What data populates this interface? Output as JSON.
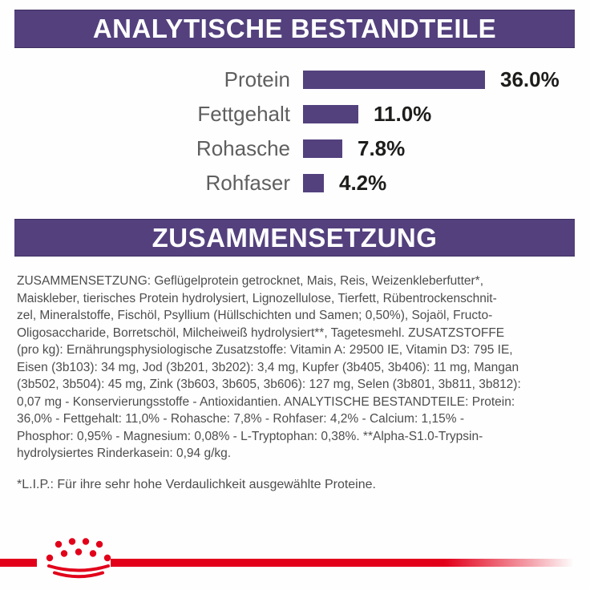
{
  "banners": {
    "analytical_title": "ANALYTISCHE BESTANDTEILE",
    "composition_title": "ZUSAMMENSETZUNG",
    "background_color": "#53407d",
    "text_color": "#ffffff"
  },
  "chart_data": {
    "type": "bar",
    "orientation": "horizontal",
    "title": "ANALYTISCHE BESTANDTEILE",
    "categories": [
      "Protein",
      "Fettgehalt",
      "Rohasche",
      "Rohfaser"
    ],
    "values": [
      36.0,
      11.0,
      7.8,
      4.2
    ],
    "value_labels": [
      "36.0%",
      "11.0%",
      "7.8%",
      "4.2%"
    ],
    "unit": "%",
    "xlim": [
      0,
      40
    ],
    "grid": false,
    "legend": false,
    "bar_color": "#53417e",
    "label_color": "#5f5f5f",
    "value_color": "#1d1d1b"
  },
  "composition": {
    "lines": [
      "ZUSAMMENSETZUNG: Geflügelprotein getrocknet, Mais, Reis, Weizenkleberfutter*,",
      "Maiskleber, tierisches Protein hydrolysiert, Lignozellulose, Tierfett, Rübentrockenschnit-",
      "zel, Mineralstoffe, Fischöl, Psyllium (Hüllschichten und Samen; 0,50%), Sojaöl, Fructo-",
      "Oligosaccharide, Borretschöl, Milcheiweiß hydrolysiert**, Tagetesmehl. ZUSATZSTOFFE",
      "(pro kg): Ernährungsphysiologische Zusatzstoffe: Vitamin A: 29500 IE, Vitamin D3: 795 IE,",
      "Eisen (3b103): 34 mg, Jod (3b201, 3b202): 3,4 mg, Kupfer (3b405, 3b406): 11 mg, Mangan",
      "(3b502, 3b504): 45 mg, Zink (3b603, 3b605, 3b606): 127 mg, Selen (3b801, 3b811, 3b812):",
      "0,07 mg - Konservierungsstoffe - Antioxidantien. ANALYTISCHE BESTANDTEILE: Protein:",
      "36,0% - Fettgehalt: 11,0% - Rohasche: 7,8% - Rohfaser: 4,2% - Calcium: 1,15% -",
      "Phosphor: 0,95% - Magnesium: 0,08% - L-Tryptophan: 0,38%. **Alpha-S1.0-Trypsin-",
      "hydrolysiertes Rinderkasein: 0,94 g/kg."
    ]
  },
  "footnote": {
    "text": "*L.I.P.: Für ihre sehr hohe Verdaulichkeit ausgewählte Proteine."
  },
  "footer": {
    "logo": "royal-canin-crown",
    "stripe_color": "#e2001a"
  }
}
